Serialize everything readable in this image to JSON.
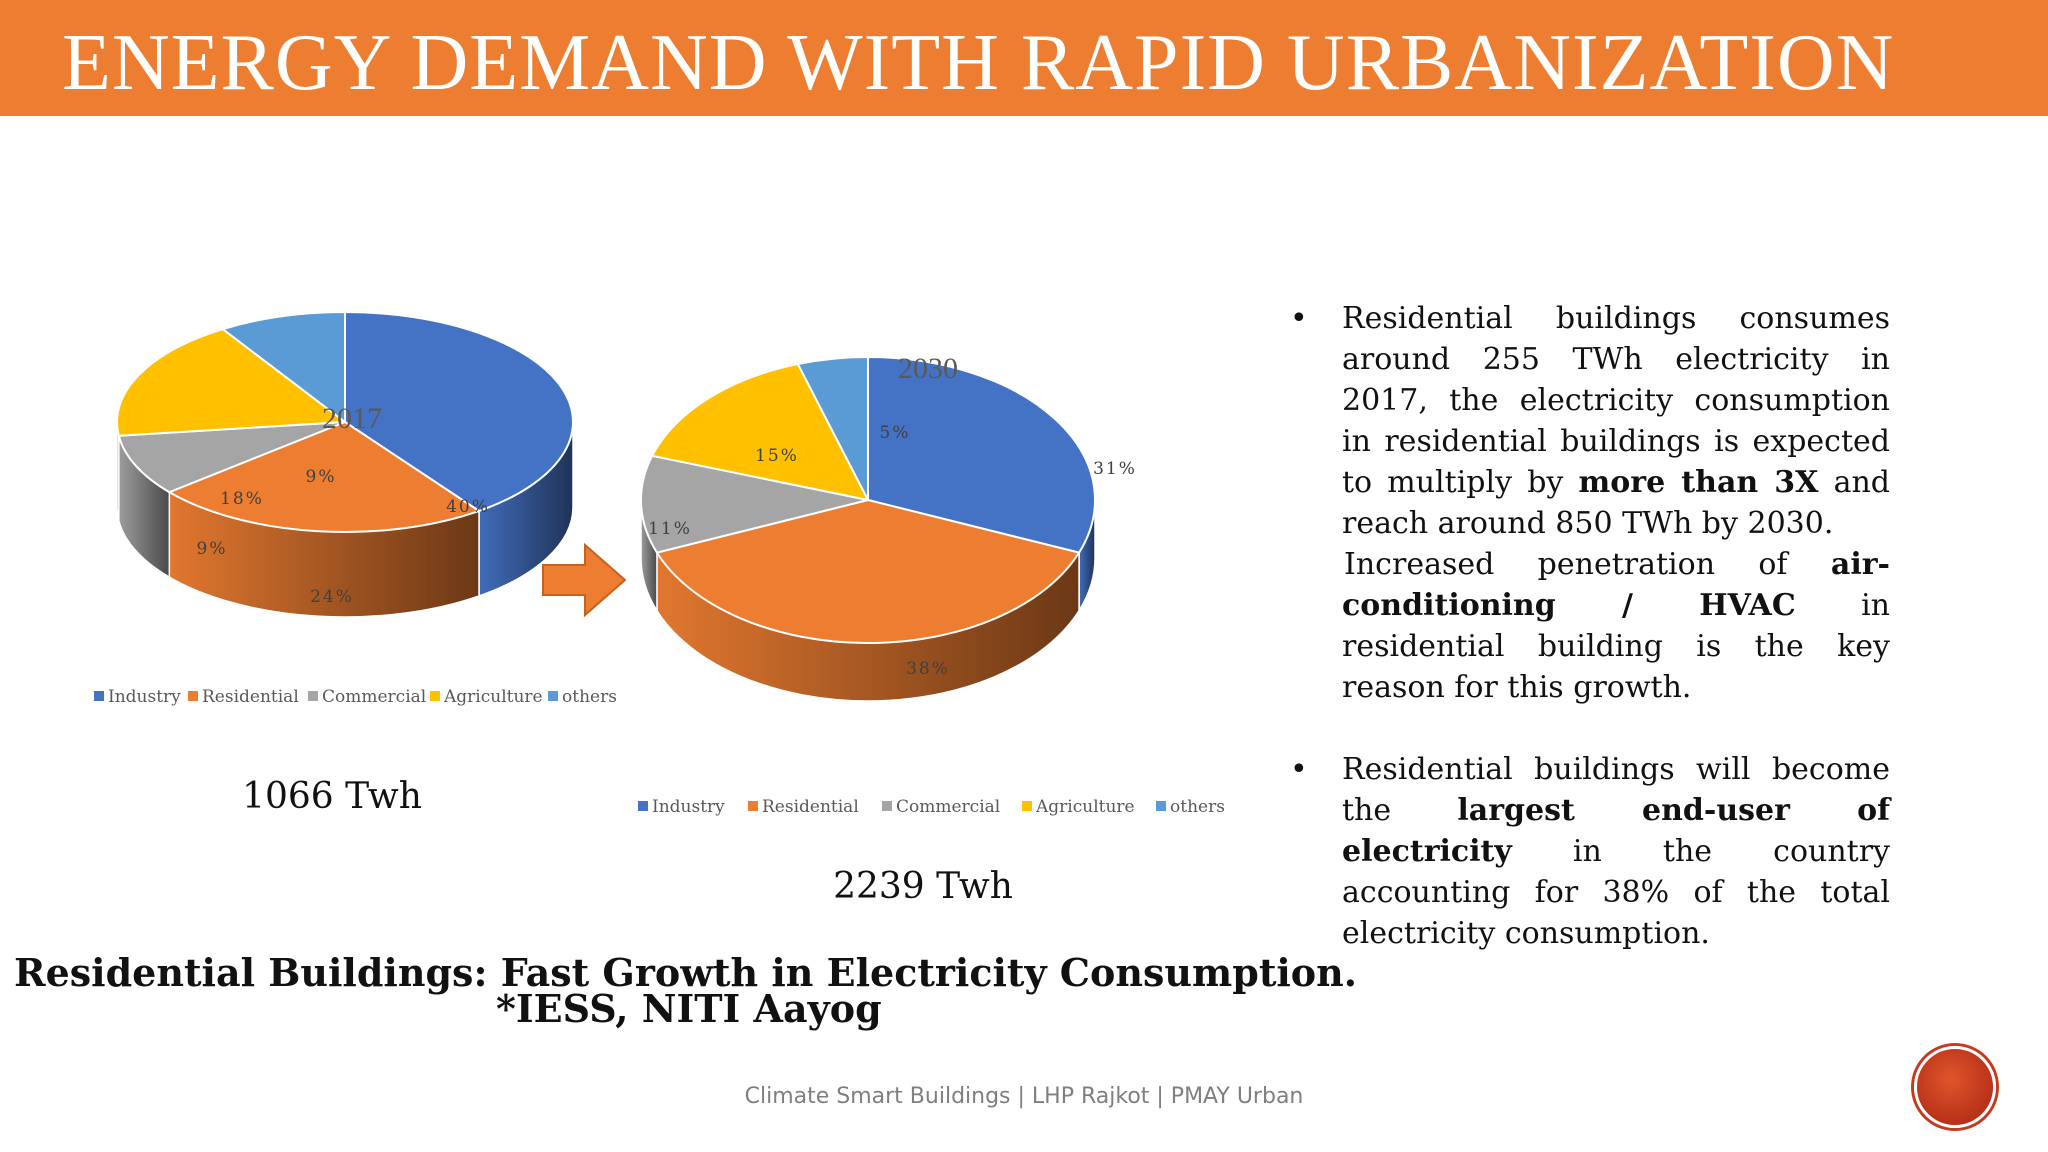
{
  "slide": {
    "title": "ENERGY DEMAND WITH RAPID URBANIZATION",
    "bottom_title": "Residential Buildings: Fast Growth in Electricity Consumption.",
    "bottom_source": "*IESS, NITI Aayog",
    "footer": "Climate Smart Buildings | LHP Rajkot | PMAY Urban"
  },
  "bullets": [
    {
      "paragraphs": [
        [
          {
            "text": "Residential buildings consumes around 255 TWh electricity in 2017, the electricity consumption in residential buildings is expected to multiply by ",
            "bold": false
          },
          {
            "text": "more than 3X",
            "bold": true
          },
          {
            "text": " and reach around 850 TWh by 2030.",
            "bold": false
          }
        ],
        [
          {
            "text": "Increased penetration of ",
            "bold": false
          },
          {
            "text": "air-conditioning / HVAC",
            "bold": true
          },
          {
            "text": " in residential building is the key reason for this growth.",
            "bold": false
          }
        ]
      ]
    },
    {
      "paragraphs": [
        [
          {
            "text": "Residential buildings will become the ",
            "bold": false
          },
          {
            "text": "largest end-user of electricity",
            "bold": true
          },
          {
            "text": " in the country accounting for 38% of the total electricity consumption.",
            "bold": false
          }
        ]
      ]
    }
  ],
  "colors": {
    "accent": "#ED7D31",
    "Industry": "#4472C4",
    "Residential": "#ED7D31",
    "Commercial": "#A5A5A5",
    "Agriculture": "#FFC000",
    "others": "#5B9BD5"
  },
  "chart_data": [
    {
      "type": "pie",
      "title": "2017",
      "total_label": "1066 Twh",
      "categories": [
        "Industry",
        "Residential",
        "Commercial",
        "Agriculture",
        "others"
      ],
      "values": [
        40,
        24,
        9,
        18,
        9
      ],
      "labels": [
        "40%",
        "24%",
        "9%",
        "18%",
        "9%"
      ],
      "legend": "bottom",
      "style": "3d"
    },
    {
      "type": "pie",
      "title": "2030",
      "total_label": "2239 Twh",
      "categories": [
        "Industry",
        "Residential",
        "Commercial",
        "Agriculture",
        "others"
      ],
      "values": [
        31,
        38,
        11,
        15,
        5
      ],
      "labels": [
        "31%",
        "38%",
        "11%",
        "15%",
        "5%"
      ],
      "legend": "bottom",
      "style": "3d"
    }
  ]
}
